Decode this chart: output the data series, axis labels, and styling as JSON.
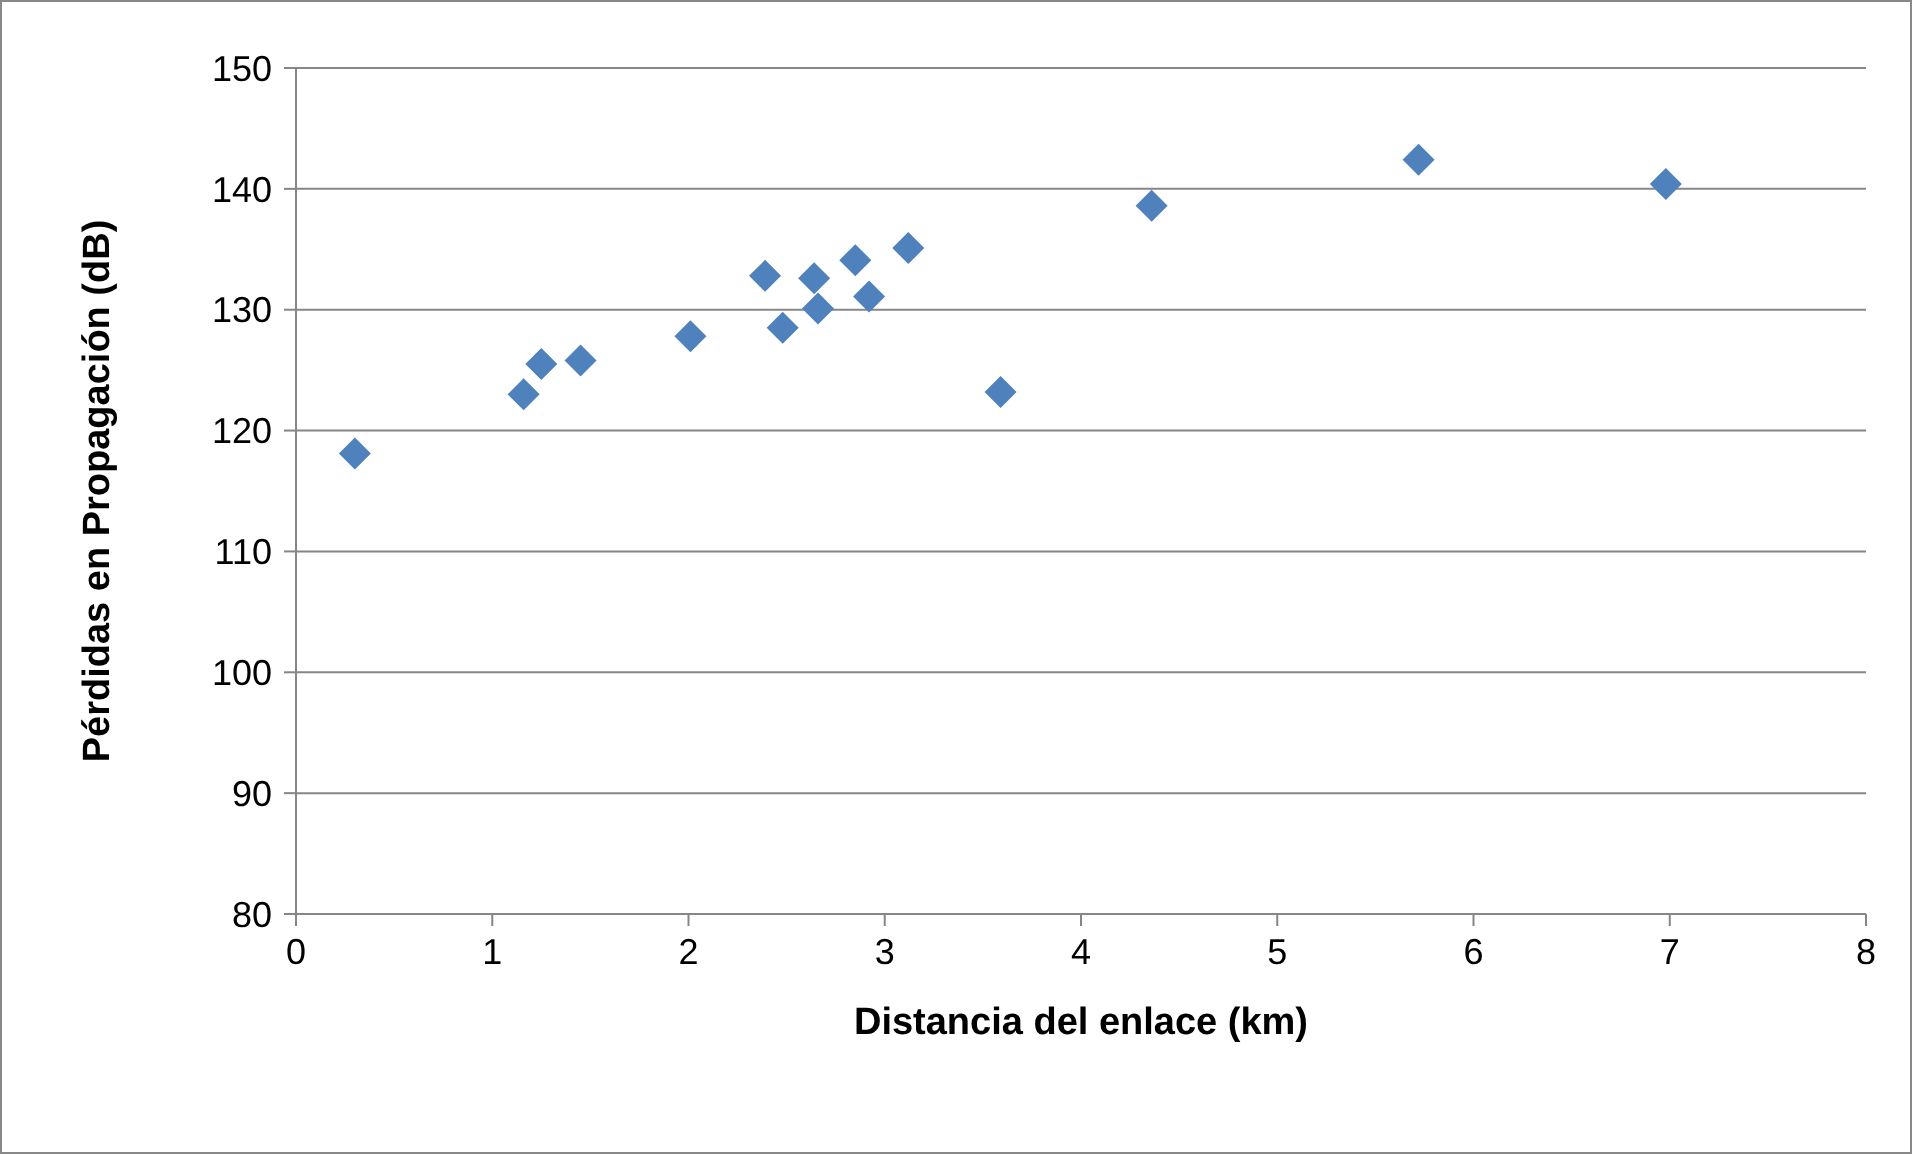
{
  "chart_data": {
    "type": "scatter",
    "xlabel": "Distancia del enlace (km)",
    "ylabel": "Pérdidas en Propagación (dB)",
    "x": [
      0.3,
      1.16,
      1.25,
      1.45,
      2.01,
      2.39,
      2.48,
      2.64,
      2.66,
      2.85,
      2.92,
      3.12,
      3.59,
      4.36,
      5.72,
      6.98
    ],
    "series": [
      {
        "color": "#4f81bd",
        "values": [
          118.1,
          123.0,
          125.5,
          125.8,
          127.8,
          132.8,
          128.5,
          132.6,
          130.1,
          134.1,
          131.1,
          135.1,
          123.2,
          138.6,
          142.4,
          140.4
        ]
      }
    ],
    "xlim": [
      0,
      8
    ],
    "xticks": [
      0,
      1,
      2,
      3,
      4,
      5,
      6,
      7,
      8
    ],
    "ylim": [
      80,
      150
    ],
    "yticks": [
      80,
      90,
      100,
      110,
      120,
      130,
      140,
      150
    ],
    "grid": "y",
    "marker": "diamond"
  }
}
